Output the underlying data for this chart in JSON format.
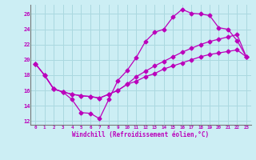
{
  "xlabel": "Windchill (Refroidissement éolien,°C)",
  "bg_color": "#cceef4",
  "grid_color": "#aad8e0",
  "line_color": "#bb00bb",
  "x_ticks": [
    0,
    1,
    2,
    3,
    4,
    5,
    6,
    7,
    8,
    9,
    10,
    11,
    12,
    13,
    14,
    15,
    16,
    17,
    18,
    19,
    20,
    21,
    22,
    23
  ],
  "y_ticks": [
    12,
    14,
    16,
    18,
    20,
    22,
    24,
    26
  ],
  "ylim": [
    11.5,
    27.2
  ],
  "xlim": [
    -0.5,
    23.5
  ],
  "line1_x": [
    0,
    1,
    2,
    3,
    4,
    5,
    6,
    7,
    8,
    9,
    10,
    11,
    12,
    13,
    14,
    15,
    16,
    17,
    18,
    19,
    20,
    21,
    22,
    23
  ],
  "line1_y": [
    19.5,
    18.0,
    16.2,
    15.8,
    14.8,
    13.1,
    13.0,
    12.3,
    14.8,
    17.3,
    18.6,
    20.3,
    22.4,
    23.6,
    24.0,
    25.6,
    26.6,
    26.1,
    26.0,
    25.8,
    24.2,
    24.0,
    22.5,
    20.4
  ],
  "line2_x": [
    0,
    1,
    2,
    3,
    4,
    5,
    6,
    7,
    8,
    9,
    10,
    11,
    12,
    13,
    14,
    15,
    16,
    17,
    18,
    19,
    20,
    21,
    22,
    23
  ],
  "line2_y": [
    19.5,
    18.0,
    16.2,
    15.8,
    15.5,
    15.3,
    15.2,
    15.0,
    15.5,
    16.0,
    16.8,
    17.8,
    18.5,
    19.2,
    19.8,
    20.4,
    21.0,
    21.5,
    22.0,
    22.4,
    22.7,
    23.0,
    23.3,
    20.4
  ],
  "line3_x": [
    0,
    1,
    2,
    3,
    4,
    5,
    6,
    7,
    8,
    9,
    10,
    11,
    12,
    13,
    14,
    15,
    16,
    17,
    18,
    19,
    20,
    21,
    22,
    23
  ],
  "line3_y": [
    19.5,
    18.0,
    16.2,
    15.8,
    15.5,
    15.3,
    15.2,
    15.0,
    15.5,
    16.0,
    16.8,
    17.2,
    17.8,
    18.2,
    18.8,
    19.2,
    19.6,
    20.0,
    20.4,
    20.7,
    20.9,
    21.1,
    21.3,
    20.4
  ]
}
